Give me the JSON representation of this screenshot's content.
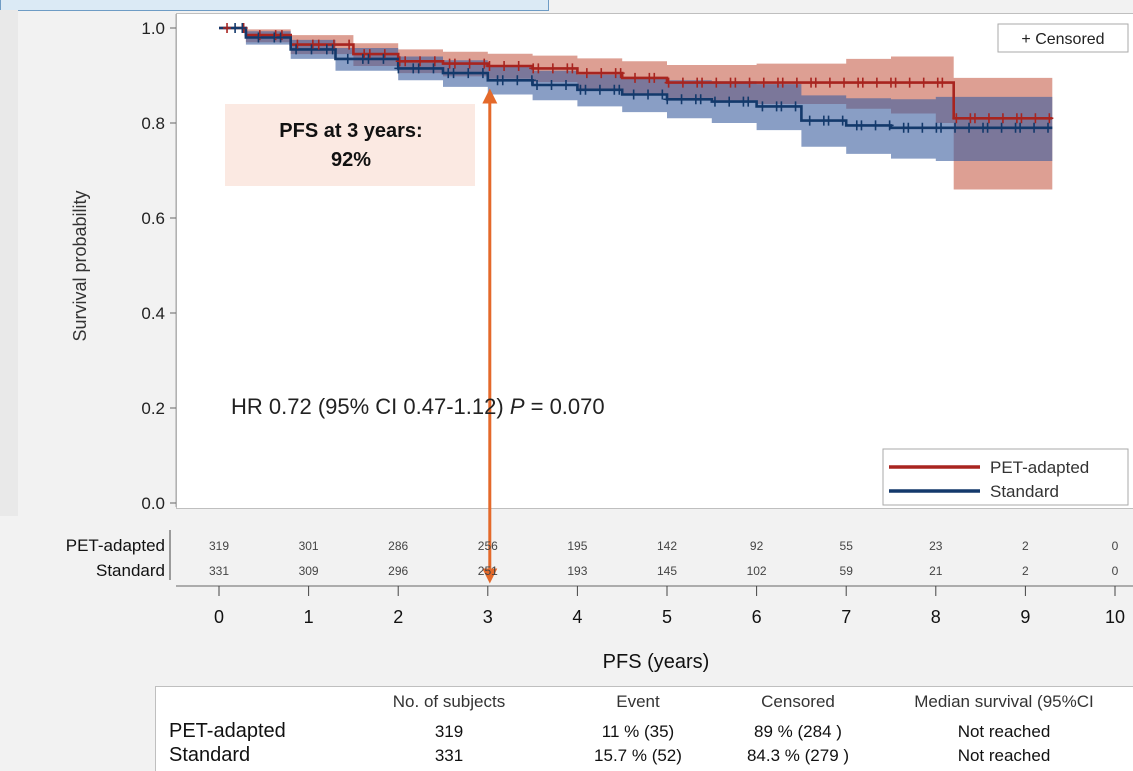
{
  "chart_data": {
    "type": "kaplan-meier",
    "xlabel": "PFS (years)",
    "ylabel": "Survival probability",
    "xlim": [
      0,
      10
    ],
    "ylim": [
      0,
      1.0
    ],
    "x_ticks": [
      "0",
      "1",
      "2",
      "3",
      "4",
      "5",
      "6",
      "7",
      "8",
      "9",
      "10"
    ],
    "y_ticks": [
      "0.0",
      "0.2",
      "0.4",
      "0.6",
      "0.8",
      "1.0"
    ],
    "censor_legend": "+ Censored",
    "legend_position": "bottom-right",
    "annotation": {
      "line1": "PFS at 3 years:",
      "line2": "92%",
      "arrow_x": 3
    },
    "hr_text_prefix": "HR 0.72 (95% CI 0.47-1.12) ",
    "hr_p_label": "P",
    "hr_p_value": " = 0.070",
    "series": [
      {
        "name": "PET-adapted",
        "color": "#a8241f",
        "band_color": "#c1503a",
        "x": [
          0,
          0.3,
          0.8,
          1.5,
          2.0,
          2.5,
          3.0,
          3.5,
          4.0,
          4.5,
          5.0,
          5.5,
          6.0,
          7.0,
          7.5,
          8.0,
          8.2,
          9.3
        ],
        "y": [
          1.0,
          0.985,
          0.965,
          0.945,
          0.93,
          0.925,
          0.92,
          0.915,
          0.905,
          0.895,
          0.885,
          0.885,
          0.885,
          0.885,
          0.885,
          0.885,
          0.81,
          0.81
        ],
        "ci_lower": [
          1.0,
          0.97,
          0.945,
          0.92,
          0.905,
          0.898,
          0.893,
          0.886,
          0.872,
          0.86,
          0.848,
          0.845,
          0.84,
          0.83,
          0.82,
          0.8,
          0.66,
          0.66
        ],
        "ci_upper": [
          1.0,
          0.997,
          0.985,
          0.968,
          0.955,
          0.95,
          0.946,
          0.942,
          0.936,
          0.93,
          0.922,
          0.922,
          0.925,
          0.935,
          0.94,
          0.94,
          0.895,
          0.895
        ],
        "at_risk": [
          "319",
          "301",
          "286",
          "256",
          "195",
          "142",
          "92",
          "55",
          "23",
          "2",
          "0"
        ]
      },
      {
        "name": "Standard",
        "color": "#13396b",
        "band_color": "#3a5e9e",
        "x": [
          0,
          0.3,
          0.8,
          1.3,
          2.0,
          2.5,
          3.0,
          3.5,
          4.0,
          4.5,
          5.0,
          5.5,
          6.0,
          6.5,
          7.0,
          7.5,
          8.0,
          9.3
        ],
        "y": [
          1.0,
          0.98,
          0.955,
          0.935,
          0.915,
          0.905,
          0.89,
          0.88,
          0.87,
          0.86,
          0.85,
          0.845,
          0.835,
          0.805,
          0.795,
          0.79,
          0.79,
          0.79
        ],
        "ci_lower": [
          1.0,
          0.965,
          0.935,
          0.91,
          0.89,
          0.876,
          0.86,
          0.848,
          0.835,
          0.823,
          0.81,
          0.8,
          0.785,
          0.75,
          0.735,
          0.725,
          0.72,
          0.72
        ],
        "ci_upper": [
          1.0,
          0.993,
          0.975,
          0.958,
          0.94,
          0.932,
          0.918,
          0.91,
          0.902,
          0.896,
          0.89,
          0.888,
          0.882,
          0.858,
          0.852,
          0.85,
          0.855,
          0.855
        ],
        "at_risk": [
          "331",
          "309",
          "296",
          "251",
          "193",
          "145",
          "102",
          "59",
          "21",
          "2",
          "0"
        ]
      }
    ],
    "summary_table": {
      "headers": [
        "",
        "No. of subjects",
        "Event",
        "Censored",
        "Median survival (95%CI"
      ],
      "rows": [
        [
          "PET-adapted",
          "319",
          "11 % (35)",
          "89 % (284 )",
          "Not reached"
        ],
        [
          "Standard",
          "331",
          "15.7 % (52)",
          "84.3 % (279 )",
          "Not reached"
        ]
      ]
    }
  }
}
